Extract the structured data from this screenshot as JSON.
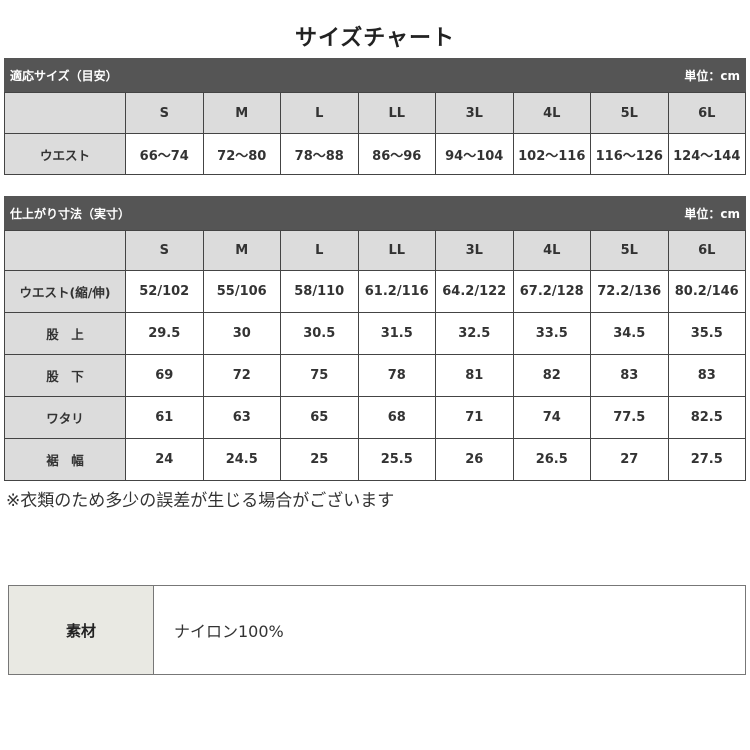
{
  "title": "サイズチャート",
  "fit_table": {
    "heading": "適応サイズ（目安）",
    "unit": "単位：cm",
    "sizes": [
      "S",
      "M",
      "L",
      "LL",
      "3L",
      "4L",
      "5L",
      "6L"
    ],
    "rows": [
      {
        "label": "ウエスト",
        "values": [
          "66〜74",
          "72〜80",
          "78〜88",
          "86〜96",
          "94〜104",
          "102〜116",
          "116〜126",
          "124〜144"
        ]
      }
    ]
  },
  "measure_table": {
    "heading": "仕上がり寸法（実寸）",
    "unit": "単位：cm",
    "sizes": [
      "S",
      "M",
      "L",
      "LL",
      "3L",
      "4L",
      "5L",
      "6L"
    ],
    "rows": [
      {
        "label": "ウエスト(縮/伸)",
        "values": [
          "52/102",
          "55/106",
          "58/110",
          "61.2/116",
          "64.2/122",
          "67.2/128",
          "72.2/136",
          "80.2/146"
        ]
      },
      {
        "label": "股　上",
        "values": [
          "29.5",
          "30",
          "30.5",
          "31.5",
          "32.5",
          "33.5",
          "34.5",
          "35.5"
        ]
      },
      {
        "label": "股　下",
        "values": [
          "69",
          "72",
          "75",
          "78",
          "81",
          "82",
          "83",
          "83"
        ]
      },
      {
        "label": "ワタリ",
        "values": [
          "61",
          "63",
          "65",
          "68",
          "71",
          "74",
          "77.5",
          "82.5"
        ]
      },
      {
        "label": "裾　幅",
        "values": [
          "24",
          "24.5",
          "25",
          "25.5",
          "26",
          "26.5",
          "27",
          "27.5"
        ]
      }
    ]
  },
  "note": "※衣類のため多少の誤差が生じる場合がございます",
  "material": {
    "label": "素材",
    "value": "ナイロン100%"
  }
}
